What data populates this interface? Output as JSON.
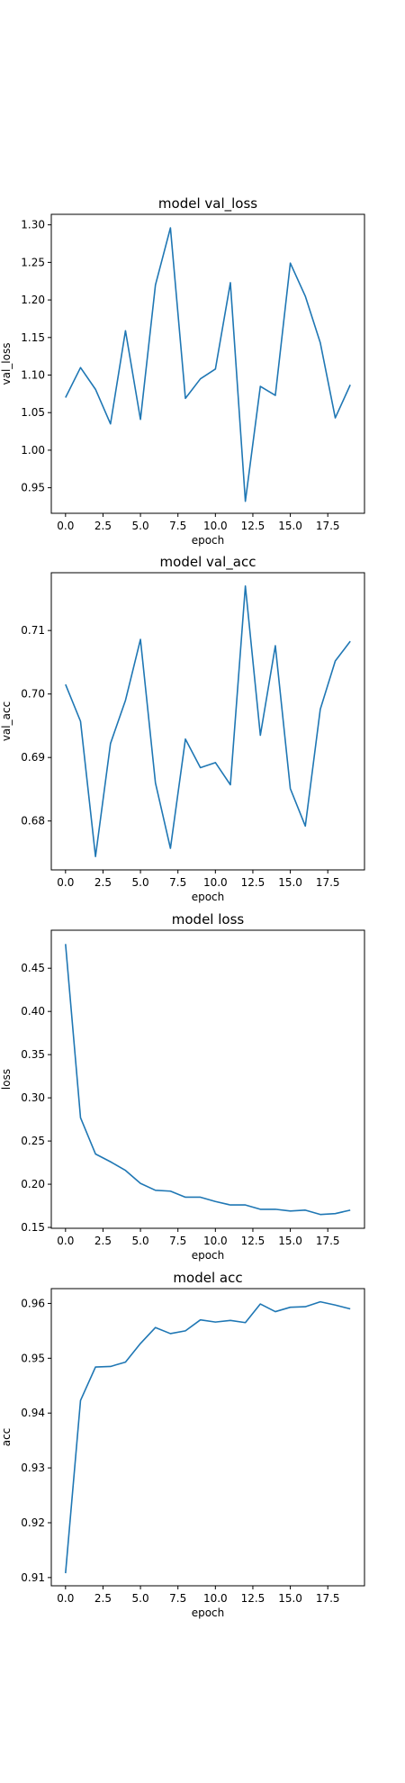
{
  "chart_data": [
    {
      "type": "line",
      "title": "model val_loss",
      "xlabel": "epoch",
      "ylabel": "val_loss",
      "x": [
        0,
        1,
        2,
        3,
        4,
        5,
        6,
        7,
        8,
        9,
        10,
        11,
        12,
        13,
        14,
        15,
        16,
        17,
        18,
        19
      ],
      "y": [
        1.07,
        1.11,
        1.081,
        1.035,
        1.159,
        1.041,
        1.22,
        1.296,
        1.069,
        1.095,
        1.108,
        1.223,
        0.932,
        1.085,
        1.073,
        1.249,
        1.205,
        1.143,
        1.043,
        1.087
      ],
      "xlim": [
        -0.95,
        19.95
      ],
      "ylim": [
        0.916,
        1.314
      ],
      "xticks": [
        0,
        2.5,
        5.0,
        7.5,
        10.0,
        12.5,
        15.0,
        17.5
      ],
      "xtick_labels": [
        "0.0",
        "2.5",
        "5.0",
        "7.5",
        "10.0",
        "12.5",
        "15.0",
        "17.5"
      ],
      "yticks": [
        0.95,
        1.0,
        1.05,
        1.1,
        1.15,
        1.2,
        1.25,
        1.3
      ],
      "ytick_labels": [
        "0.95",
        "1.00",
        "1.05",
        "1.10",
        "1.15",
        "1.20",
        "1.25",
        "1.30"
      ],
      "grid": false,
      "color": "#1f77b4"
    },
    {
      "type": "line",
      "title": "model val_acc",
      "xlabel": "epoch",
      "ylabel": "val_acc",
      "x": [
        0,
        1,
        2,
        3,
        4,
        5,
        6,
        7,
        8,
        9,
        10,
        11,
        12,
        13,
        14,
        15,
        16,
        17,
        18,
        19
      ],
      "y": [
        0.7015,
        0.6957,
        0.6744,
        0.6922,
        0.699,
        0.7086,
        0.686,
        0.6757,
        0.6929,
        0.6884,
        0.6892,
        0.6857,
        0.717,
        0.6935,
        0.7076,
        0.6851,
        0.6792,
        0.6976,
        0.7052,
        0.7083
      ],
      "xlim": [
        -0.95,
        19.95
      ],
      "ylim": [
        0.6723,
        0.7191
      ],
      "xticks": [
        0,
        2.5,
        5.0,
        7.5,
        10.0,
        12.5,
        15.0,
        17.5
      ],
      "xtick_labels": [
        "0.0",
        "2.5",
        "5.0",
        "7.5",
        "10.0",
        "12.5",
        "15.0",
        "17.5"
      ],
      "yticks": [
        0.68,
        0.69,
        0.7,
        0.71
      ],
      "ytick_labels": [
        "0.68",
        "0.69",
        "0.70",
        "0.71"
      ],
      "grid": false,
      "color": "#1f77b4"
    },
    {
      "type": "line",
      "title": "model loss",
      "xlabel": "epoch",
      "ylabel": "loss",
      "x": [
        0,
        1,
        2,
        3,
        4,
        5,
        6,
        7,
        8,
        9,
        10,
        11,
        12,
        13,
        14,
        15,
        16,
        17,
        18,
        19
      ],
      "y": [
        0.478,
        0.277,
        0.235,
        0.226,
        0.216,
        0.201,
        0.193,
        0.192,
        0.185,
        0.185,
        0.18,
        0.176,
        0.176,
        0.171,
        0.171,
        0.169,
        0.17,
        0.165,
        0.166,
        0.17
      ],
      "xlim": [
        -0.95,
        19.95
      ],
      "ylim": [
        0.149,
        0.494
      ],
      "xticks": [
        0,
        2.5,
        5.0,
        7.5,
        10.0,
        12.5,
        15.0,
        17.5
      ],
      "xtick_labels": [
        "0.0",
        "2.5",
        "5.0",
        "7.5",
        "10.0",
        "12.5",
        "15.0",
        "17.5"
      ],
      "yticks": [
        0.15,
        0.2,
        0.25,
        0.3,
        0.35,
        0.4,
        0.45
      ],
      "ytick_labels": [
        "0.15",
        "0.20",
        "0.25",
        "0.30",
        "0.35",
        "0.40",
        "0.45"
      ],
      "grid": false,
      "color": "#1f77b4"
    },
    {
      "type": "line",
      "title": "model acc",
      "xlabel": "epoch",
      "ylabel": "acc",
      "x": [
        0,
        1,
        2,
        3,
        4,
        5,
        6,
        7,
        8,
        9,
        10,
        11,
        12,
        13,
        14,
        15,
        16,
        17,
        18,
        19
      ],
      "y": [
        0.9108,
        0.9423,
        0.9484,
        0.9485,
        0.9493,
        0.9527,
        0.9556,
        0.9545,
        0.955,
        0.957,
        0.9566,
        0.9569,
        0.9565,
        0.9599,
        0.9585,
        0.9593,
        0.9594,
        0.9603,
        0.9597,
        0.959
      ],
      "xlim": [
        -0.95,
        19.95
      ],
      "ylim": [
        0.9085,
        0.9627
      ],
      "xticks": [
        0,
        2.5,
        5.0,
        7.5,
        10.0,
        12.5,
        15.0,
        17.5
      ],
      "xtick_labels": [
        "0.0",
        "2.5",
        "5.0",
        "7.5",
        "10.0",
        "12.5",
        "15.0",
        "17.5"
      ],
      "yticks": [
        0.91,
        0.92,
        0.93,
        0.94,
        0.95,
        0.96
      ],
      "ytick_labels": [
        "0.91",
        "0.92",
        "0.93",
        "0.94",
        "0.95",
        "0.96"
      ],
      "grid": false,
      "color": "#1f77b4"
    }
  ]
}
